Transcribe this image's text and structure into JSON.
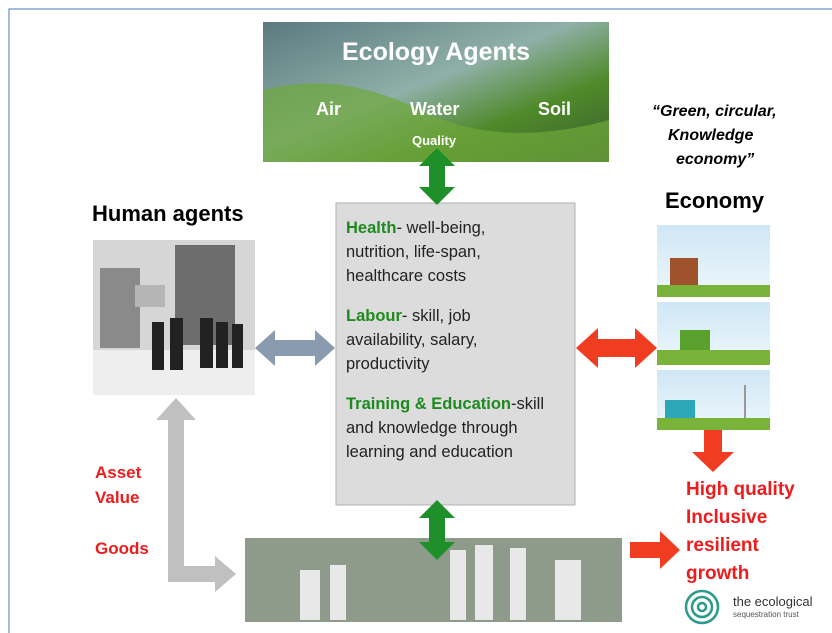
{
  "ecology": {
    "title": "Ecology Agents",
    "labels": [
      "Air",
      "Water",
      "Soil"
    ],
    "sublabel": "Quality"
  },
  "quote": [
    "“Green, circular,",
    "Knowledge",
    "economy”"
  ],
  "human_agents": {
    "title": "Human agents",
    "asset": [
      "Asset",
      "Value"
    ],
    "goods": "Goods"
  },
  "economy": {
    "title": "Economy",
    "outcome": [
      "High quality",
      "Inclusive",
      "resilient",
      "growth"
    ]
  },
  "center_box": {
    "items": [
      {
        "term": "Health",
        "lines": [
          "- well-being,",
          "nutrition, life-span,",
          "healthcare costs"
        ]
      },
      {
        "term": "Labour",
        "lines": [
          "- skill, job",
          "availability, salary,",
          "productivity"
        ]
      },
      {
        "term": "Training & Education",
        "lines": [
          "-skill",
          "and knowledge through",
          "learning and education"
        ]
      }
    ]
  },
  "logo": {
    "name": "the ecological",
    "subtitle": "sequestration trust"
  }
}
